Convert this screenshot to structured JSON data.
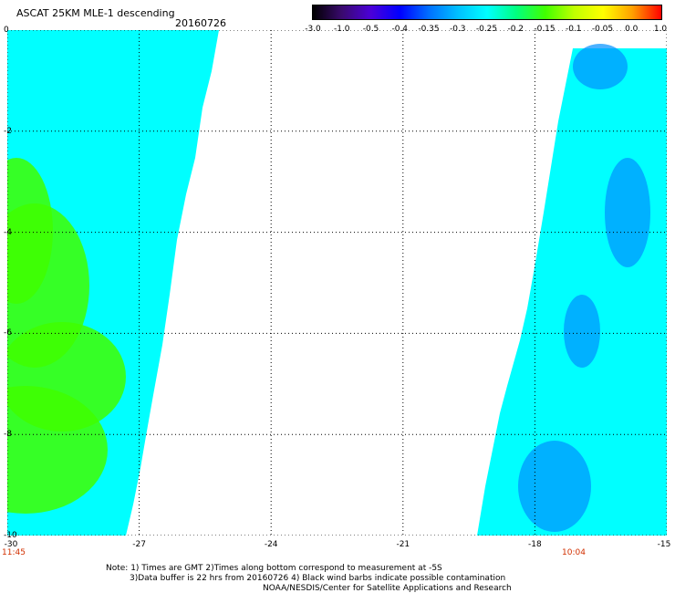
{
  "header": {
    "title": "ASCAT 25KM MLE-1 descending",
    "date": "20160726"
  },
  "colorbar": {
    "ticks": [
      "-3.0",
      "-1.0",
      "-0.5",
      "-0.4",
      "-0.35",
      "-0.3",
      "-0.25",
      "-0.2",
      "-0.15",
      "-0.1",
      "-0.05",
      "0.0",
      "1.0"
    ],
    "colors": [
      "#000000",
      "#3a0a6e",
      "#4b00d8",
      "#0000ff",
      "#0070ff",
      "#00c0ff",
      "#00ffff",
      "#00ff80",
      "#40ff00",
      "#c0ff00",
      "#ffff00",
      "#ffa000",
      "#ff0000"
    ]
  },
  "axes": {
    "x_ticks": [
      "-30",
      "-27",
      "-24",
      "-21",
      "-18",
      "-15"
    ],
    "y_ticks": [
      "0",
      "-2",
      "-4",
      "-6",
      "-8",
      "-10"
    ],
    "xlim": [
      -30,
      -15
    ],
    "ylim": [
      -10,
      0
    ],
    "gridlines": "dotted"
  },
  "times": {
    "left": "11:45",
    "right": "10:04"
  },
  "notes": [
    "Note: 1) Times are GMT 2)Times along bottom correspond to measurement at -5S",
    "3)Data buffer is 22 hrs from 20160726 4) Black wind barbs indicate possible contamination",
    "NOAA/NESDIS/Center for Satellite Applications and Research"
  ],
  "swaths": {
    "left_color": "#00ffff",
    "right_color": "#00ffff",
    "green_patch": "#40ff00",
    "blue_patch": "#0090ff"
  }
}
